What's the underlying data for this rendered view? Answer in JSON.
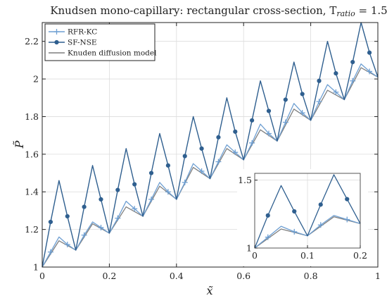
{
  "chart_data": {
    "type": "line",
    "title": "Knudsen mono-capillary: rectangular cross-section, T",
    "title_subscript": "ratio",
    "title_suffix": " = 1.5",
    "xlabel": "x̃",
    "ylabel": "P̃",
    "xlim": [
      0,
      1
    ],
    "ylim": [
      1,
      2.3
    ],
    "xticks": [
      "0",
      "0.2",
      "0.4",
      "0.6",
      "0.8",
      "1"
    ],
    "xtick_values": [
      0,
      0.2,
      0.4,
      0.6,
      0.8,
      1
    ],
    "yticks": [
      "1",
      "1.2",
      "1.4",
      "1.6",
      "1.8",
      "2",
      "2.2"
    ],
    "ytick_values": [
      1,
      1.2,
      1.4,
      1.6,
      1.8,
      2,
      2.2
    ],
    "grid": true,
    "legend_position": "top-left",
    "series": [
      {
        "name": "RFR-KC",
        "color": "#6e9fd2",
        "marker": "plus",
        "x": [
          0,
          0.025,
          0.05,
          0.075,
          0.1,
          0.125,
          0.15,
          0.175,
          0.2,
          0.225,
          0.25,
          0.275,
          0.3,
          0.325,
          0.35,
          0.375,
          0.4,
          0.425,
          0.45,
          0.475,
          0.5,
          0.525,
          0.55,
          0.575,
          0.6,
          0.625,
          0.65,
          0.675,
          0.7,
          0.725,
          0.75,
          0.775,
          0.8,
          0.825,
          0.85,
          0.875,
          0.9,
          0.925,
          0.95,
          0.975,
          1
        ],
        "y": [
          1,
          1.08,
          1.16,
          1.12,
          1.09,
          1.17,
          1.24,
          1.21,
          1.18,
          1.26,
          1.35,
          1.31,
          1.27,
          1.36,
          1.45,
          1.4,
          1.36,
          1.45,
          1.55,
          1.51,
          1.47,
          1.56,
          1.65,
          1.61,
          1.57,
          1.66,
          1.76,
          1.71,
          1.67,
          1.77,
          1.87,
          1.82,
          1.78,
          1.88,
          1.97,
          1.93,
          1.89,
          1.99,
          2.08,
          2.04,
          2.01
        ]
      },
      {
        "name": "SF-NSE",
        "color": "#2f5f8f",
        "marker": "circle",
        "x": [
          0,
          0.025,
          0.05,
          0.075,
          0.1,
          0.125,
          0.15,
          0.175,
          0.2,
          0.225,
          0.25,
          0.275,
          0.3,
          0.325,
          0.35,
          0.375,
          0.4,
          0.425,
          0.45,
          0.475,
          0.5,
          0.525,
          0.55,
          0.575,
          0.6,
          0.625,
          0.65,
          0.675,
          0.7,
          0.725,
          0.75,
          0.775,
          0.8,
          0.825,
          0.85,
          0.875,
          0.9,
          0.925,
          0.95,
          0.975,
          1
        ],
        "y": [
          1,
          1.24,
          1.46,
          1.27,
          1.09,
          1.32,
          1.54,
          1.36,
          1.18,
          1.41,
          1.63,
          1.44,
          1.27,
          1.5,
          1.71,
          1.54,
          1.36,
          1.59,
          1.8,
          1.63,
          1.47,
          1.69,
          1.9,
          1.72,
          1.57,
          1.78,
          1.99,
          1.83,
          1.67,
          1.89,
          2.09,
          1.92,
          1.78,
          1.99,
          2.2,
          2.03,
          1.89,
          2.09,
          2.3,
          2.14,
          2.01
        ]
      },
      {
        "name": "Knuden diffusion model",
        "color": "#7f7f7f",
        "marker": "none",
        "x": [
          0,
          0.05,
          0.1,
          0.15,
          0.2,
          0.25,
          0.3,
          0.35,
          0.4,
          0.45,
          0.5,
          0.55,
          0.6,
          0.65,
          0.7,
          0.75,
          0.8,
          0.85,
          0.9,
          0.95,
          1
        ],
        "y": [
          1,
          1.14,
          1.09,
          1.23,
          1.18,
          1.32,
          1.27,
          1.43,
          1.36,
          1.53,
          1.47,
          1.63,
          1.57,
          1.73,
          1.67,
          1.84,
          1.78,
          1.94,
          1.89,
          2.06,
          2.01
        ]
      }
    ],
    "inset": {
      "xlim": [
        0,
        0.2
      ],
      "ylim": [
        1,
        1.55
      ],
      "xticks": [
        "0",
        "0.1",
        "0.2"
      ],
      "xtick_values": [
        0,
        0.1,
        0.2
      ],
      "yticks": [
        "1",
        "1.5"
      ],
      "ytick_values": [
        1,
        1.5
      ]
    }
  }
}
